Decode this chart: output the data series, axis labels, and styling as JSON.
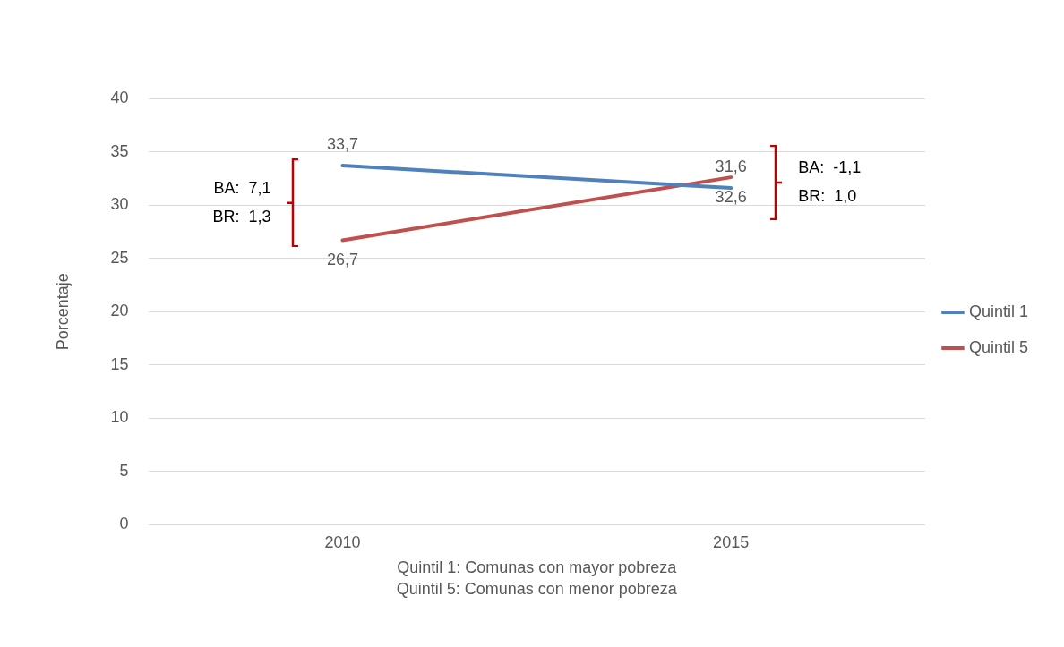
{
  "chart_data": {
    "type": "line",
    "ylabel": "Porcentaje",
    "categories": [
      "2010",
      "2015"
    ],
    "series": [
      {
        "name": "Quintil 1",
        "color": "#4f81bd",
        "values": [
          33.7,
          31.6
        ],
        "value_labels": [
          "33,7",
          "31,6"
        ]
      },
      {
        "name": "Quintil 5",
        "color": "#c0504d",
        "values": [
          26.7,
          32.6
        ],
        "value_labels": [
          "26,7",
          "32,6"
        ]
      }
    ],
    "ylim": [
      0,
      40
    ],
    "yticks": [
      0,
      5,
      10,
      15,
      20,
      25,
      30,
      35,
      40
    ],
    "grid": "y",
    "legend": "right",
    "marker": "none",
    "line_style": "solid",
    "annotations": [
      "BA:  7,1\nBR:  1,3",
      "BA:  -1,1\nBR:  1,0",
      "Quintil 1: Comunas con mayor pobreza",
      "Quintil 5: Comunas con menor pobreza"
    ]
  }
}
